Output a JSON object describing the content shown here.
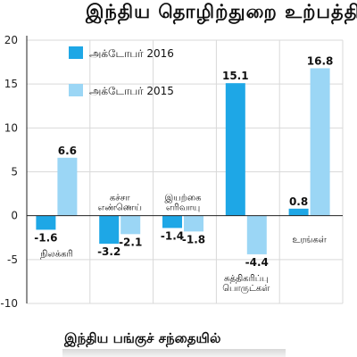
{
  "header": {
    "title": "இந்திய தொழிற்துறை உற்பத்தி"
  },
  "footer": {
    "text": "இந்திய பங்குச் சந்தையில்"
  },
  "colors": {
    "oct2016": "#1ea7e6",
    "oct2015": "#9bd6f5",
    "grid": "#d9d9d9",
    "axis": "#222222"
  },
  "chart_data": {
    "type": "bar",
    "title": "இந்திய தொழிற்துறை உற்பத்தி",
    "categories": [
      [
        "நிலக்கரி"
      ],
      [
        "கச்சா",
        "எண்ணெய்"
      ],
      [
        "இயற்கை",
        "எரிவாயு"
      ],
      [
        "சுத்திகரிப்பு",
        "பொருட்கள்"
      ],
      [
        "உரங்கள்"
      ]
    ],
    "series": [
      {
        "name": "அக்டோபர் 2016",
        "values": [
          -1.6,
          -3.2,
          -1.4,
          15.1,
          0.8
        ],
        "labels": [
          "-1.6",
          "-3.2",
          "-1.4",
          "15.1",
          "0.8"
        ]
      },
      {
        "name": "அக்டோபர் 2015",
        "values": [
          6.6,
          -2.1,
          -1.8,
          -4.4,
          16.8
        ],
        "labels": [
          "6.6",
          "-2.1",
          "-1.8",
          "-4.4",
          "16.8"
        ]
      }
    ],
    "yticks": [
      "20",
      "15",
      "10",
      "5",
      "0",
      "-5",
      "-10"
    ],
    "ylim": [
      -10,
      20
    ],
    "grid": true,
    "legend": "top-left",
    "xlabel": "",
    "ylabel": ""
  }
}
